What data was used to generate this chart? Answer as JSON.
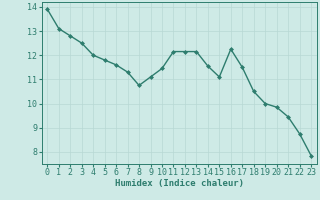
{
  "x": [
    0,
    1,
    2,
    3,
    4,
    5,
    6,
    7,
    8,
    9,
    10,
    11,
    12,
    13,
    14,
    15,
    16,
    17,
    18,
    19,
    20,
    21,
    22,
    23
  ],
  "y": [
    13.9,
    13.1,
    12.8,
    12.5,
    12.0,
    11.8,
    11.6,
    11.3,
    10.75,
    11.1,
    11.45,
    12.15,
    12.15,
    12.15,
    11.55,
    11.1,
    12.25,
    11.5,
    10.5,
    10.0,
    9.85,
    9.45,
    8.75,
    7.85
  ],
  "line_color": "#2e7d6e",
  "marker": "D",
  "markersize": 2.0,
  "linewidth": 1.0,
  "bg_color": "#ceeae6",
  "grid_color": "#b8d8d4",
  "xlabel": "Humidex (Indice chaleur)",
  "ylim": [
    7.5,
    14.2
  ],
  "xlim": [
    -0.5,
    23.5
  ],
  "yticks": [
    8,
    9,
    10,
    11,
    12,
    13,
    14
  ],
  "xticks": [
    0,
    1,
    2,
    3,
    4,
    5,
    6,
    7,
    8,
    9,
    10,
    11,
    12,
    13,
    14,
    15,
    16,
    17,
    18,
    19,
    20,
    21,
    22,
    23
  ],
  "xlabel_fontsize": 6.5,
  "tick_fontsize": 6.0,
  "spine_color": "#2e7d6e"
}
